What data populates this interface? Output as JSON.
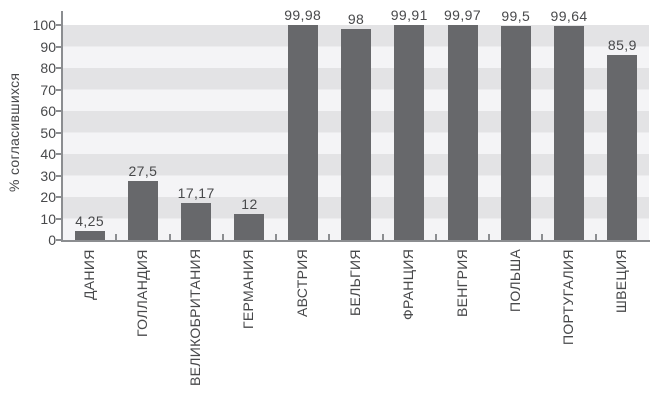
{
  "chart_data": {
    "type": "bar",
    "categories": [
      "ДАНИЯ",
      "ГОЛЛАНДИЯ",
      "ВЕЛИКОБРИТАНИЯ",
      "ГЕРМАНИЯ",
      "АВСТРИЯ",
      "БЕЛЬГИЯ",
      "ФРАНЦИЯ",
      "ВЕНГРИЯ",
      "ПОЛЬША",
      "ПОРТУГАЛИЯ",
      "ШВЕЦИЯ"
    ],
    "values": [
      4.25,
      27.5,
      17.17,
      12,
      99.98,
      98,
      99.91,
      99.97,
      99.5,
      99.64,
      85.9
    ],
    "value_labels": [
      "4,25",
      "27,5",
      "17,17",
      "12",
      "99,98",
      "98",
      "99,91",
      "99,97",
      "99,5",
      "99,64",
      "85,9"
    ],
    "title": "",
    "xlabel": "",
    "ylabel": "% согласившихся",
    "ylim": [
      0,
      100
    ],
    "yticks": [
      0,
      10,
      20,
      30,
      40,
      50,
      60,
      70,
      80,
      90,
      100
    ],
    "grid": "horizontal alternating bands",
    "legend": "none",
    "colors": {
      "bar": "#67686b",
      "band_dark": "#e3e3e5",
      "band_light": "#f4f4f6",
      "axis": "#8b8d90",
      "text": "#48494b"
    }
  }
}
